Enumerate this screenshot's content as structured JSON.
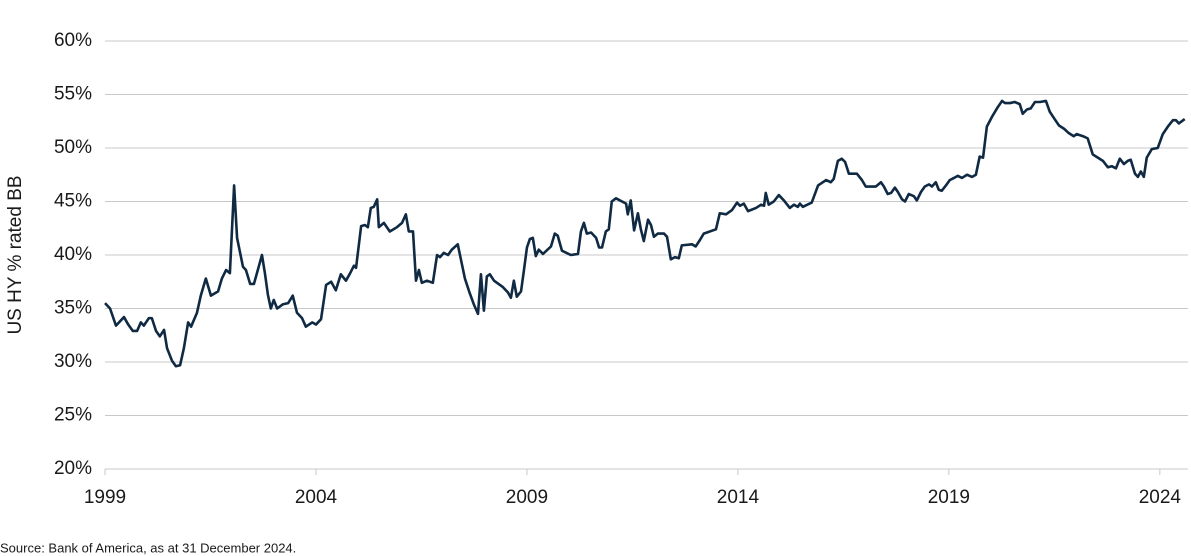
{
  "chart_data": {
    "type": "line",
    "y_axis_label": "US HY % rated BB",
    "source": "Source: Bank of America, as at 31 December 2024.",
    "xlim": [
      1999,
      2024.62
    ],
    "xticks": [
      1999,
      2004,
      2009,
      2014,
      2019,
      2024
    ],
    "ylim": [
      20,
      60
    ],
    "yticks": [
      {
        "value": 20,
        "label": "20%"
      },
      {
        "value": 25,
        "label": "25%"
      },
      {
        "value": 30,
        "label": "30%"
      },
      {
        "value": 35,
        "label": "35%"
      },
      {
        "value": 40,
        "label": "40%"
      },
      {
        "value": 45,
        "label": "45%"
      },
      {
        "value": 50,
        "label": "50%"
      },
      {
        "value": 55,
        "label": "55%"
      },
      {
        "value": 60,
        "label": "60%"
      }
    ],
    "grid": true,
    "x": [
      1999.0,
      1999.12,
      1999.26,
      1999.45,
      1999.55,
      1999.66,
      1999.76,
      1999.85,
      1999.92,
      2000.04,
      2000.11,
      2000.21,
      2000.3,
      2000.4,
      2000.47,
      2000.59,
      2000.68,
      2000.78,
      2000.87,
      2000.97,
      2001.04,
      2001.18,
      2001.27,
      2001.39,
      2001.51,
      2001.68,
      2001.77,
      2001.87,
      2001.96,
      2002.06,
      2002.13,
      2002.27,
      2002.34,
      2002.44,
      2002.53,
      2002.65,
      2002.72,
      2002.79,
      2002.86,
      2002.93,
      2003.0,
      2003.08,
      2003.22,
      2003.34,
      2003.45,
      2003.55,
      2003.67,
      2003.76,
      2003.91,
      2004.0,
      2004.12,
      2004.24,
      2004.36,
      2004.47,
      2004.59,
      2004.71,
      2004.81,
      2004.9,
      2004.95,
      2005.07,
      2005.16,
      2005.23,
      2005.3,
      2005.37,
      2005.45,
      2005.49,
      2005.61,
      2005.75,
      2005.92,
      2006.04,
      2006.13,
      2006.2,
      2006.3,
      2006.37,
      2006.44,
      2006.51,
      2006.63,
      2006.77,
      2006.87,
      2006.94,
      2007.03,
      2007.13,
      2007.22,
      2007.36,
      2007.44,
      2007.53,
      2007.63,
      2007.74,
      2007.84,
      2007.91,
      2007.98,
      2008.05,
      2008.12,
      2008.22,
      2008.43,
      2008.55,
      2008.62,
      2008.69,
      2008.76,
      2008.86,
      2008.93,
      2009.0,
      2009.07,
      2009.14,
      2009.21,
      2009.28,
      2009.38,
      2009.57,
      2009.66,
      2009.73,
      2009.83,
      2010.04,
      2010.21,
      2010.28,
      2010.35,
      2010.42,
      2010.52,
      2010.64,
      2010.71,
      2010.78,
      2010.87,
      2010.94,
      2011.01,
      2011.11,
      2011.35,
      2011.39,
      2011.46,
      2011.54,
      2011.63,
      2011.7,
      2011.77,
      2011.87,
      2011.94,
      2012.01,
      2012.1,
      2012.25,
      2012.32,
      2012.41,
      2012.51,
      2012.6,
      2012.67,
      2012.91,
      2013.0,
      2013.1,
      2013.19,
      2013.48,
      2013.57,
      2013.72,
      2013.86,
      2013.98,
      2014.05,
      2014.14,
      2014.24,
      2014.43,
      2014.55,
      2014.62,
      2014.66,
      2014.73,
      2014.85,
      2014.97,
      2015.09,
      2015.23,
      2015.33,
      2015.42,
      2015.47,
      2015.54,
      2015.75,
      2015.9,
      2016.09,
      2016.2,
      2016.27,
      2016.37,
      2016.46,
      2016.54,
      2016.63,
      2016.82,
      2016.94,
      2017.03,
      2017.27,
      2017.39,
      2017.46,
      2017.55,
      2017.63,
      2017.72,
      2017.79,
      2017.89,
      2017.96,
      2018.05,
      2018.17,
      2018.24,
      2018.34,
      2018.43,
      2018.53,
      2018.6,
      2018.69,
      2018.76,
      2018.83,
      2018.93,
      2019.02,
      2019.12,
      2019.21,
      2019.31,
      2019.43,
      2019.55,
      2019.64,
      2019.73,
      2019.81,
      2019.9,
      2020.02,
      2020.14,
      2020.26,
      2020.33,
      2020.45,
      2020.56,
      2020.68,
      2020.75,
      2020.85,
      2020.94,
      2021.04,
      2021.16,
      2021.3,
      2021.39,
      2021.49,
      2021.61,
      2021.73,
      2021.84,
      2021.96,
      2022.03,
      2022.18,
      2022.29,
      2022.41,
      2022.53,
      2022.65,
      2022.77,
      2022.86,
      2022.96,
      2023.05,
      2023.15,
      2023.24,
      2023.31,
      2023.41,
      2023.48,
      2023.55,
      2023.62,
      2023.69,
      2023.81,
      2023.95,
      2024.07,
      2024.19,
      2024.31,
      2024.38,
      2024.45,
      2024.59
    ],
    "series": [
      {
        "color": "#0f2a42",
        "values": [
          35.5,
          35.0,
          33.4,
          34.2,
          33.5,
          32.9,
          32.9,
          33.7,
          33.4,
          34.1,
          34.1,
          32.9,
          32.4,
          33.0,
          31.3,
          30.1,
          29.6,
          29.7,
          31.3,
          33.7,
          33.3,
          34.6,
          36.2,
          37.8,
          36.2,
          36.6,
          37.8,
          38.6,
          38.3,
          46.5,
          41.6,
          38.9,
          38.6,
          37.3,
          37.3,
          39.0,
          40.0,
          38.3,
          36.3,
          35.0,
          35.8,
          35.0,
          35.4,
          35.5,
          36.2,
          34.6,
          34.1,
          33.3,
          33.7,
          33.5,
          34.0,
          37.2,
          37.5,
          36.7,
          38.2,
          37.6,
          38.3,
          39.0,
          38.8,
          42.7,
          42.8,
          42.6,
          44.4,
          44.5,
          45.2,
          42.6,
          43.0,
          42.2,
          42.6,
          43.0,
          43.8,
          42.2,
          42.2,
          37.6,
          38.6,
          37.4,
          37.6,
          37.4,
          40.0,
          39.8,
          40.2,
          40.0,
          40.5,
          41.0,
          39.5,
          37.8,
          36.6,
          35.4,
          34.5,
          38.2,
          34.8,
          38.0,
          38.2,
          37.6,
          37.0,
          36.5,
          36.0,
          37.6,
          36.1,
          36.6,
          38.6,
          40.7,
          41.5,
          41.6,
          39.9,
          40.5,
          40.1,
          40.8,
          42.0,
          41.8,
          40.4,
          40.0,
          40.1,
          42.2,
          43.0,
          42.0,
          42.1,
          41.6,
          40.7,
          40.7,
          42.2,
          42.4,
          45.0,
          45.3,
          44.8,
          43.8,
          45.1,
          42.3,
          43.9,
          42.4,
          41.3,
          43.3,
          42.8,
          41.7,
          42.0,
          42.0,
          41.7,
          39.6,
          39.8,
          39.7,
          40.9,
          41.0,
          40.8,
          41.4,
          42.0,
          42.4,
          43.9,
          43.8,
          44.2,
          44.9,
          44.6,
          44.8,
          44.1,
          44.4,
          44.7,
          44.6,
          45.8,
          44.7,
          45.0,
          45.6,
          45.1,
          44.4,
          44.7,
          44.5,
          44.8,
          44.5,
          44.9,
          46.5,
          47.0,
          46.8,
          47.1,
          48.8,
          49.0,
          48.7,
          47.6,
          47.6,
          47.0,
          46.4,
          46.4,
          46.8,
          46.4,
          45.7,
          45.8,
          46.3,
          45.9,
          45.2,
          45.0,
          45.7,
          45.5,
          45.1,
          45.9,
          46.4,
          46.6,
          46.4,
          46.8,
          46.1,
          46.0,
          46.5,
          47.0,
          47.2,
          47.4,
          47.2,
          47.5,
          47.3,
          47.5,
          49.2,
          49.1,
          52.0,
          52.9,
          53.7,
          54.4,
          54.2,
          54.2,
          54.3,
          54.1,
          53.2,
          53.6,
          53.7,
          54.3,
          54.3,
          54.4,
          53.4,
          52.8,
          52.1,
          51.8,
          51.4,
          51.1,
          51.3,
          51.1,
          50.9,
          49.4,
          49.1,
          48.8,
          48.2,
          48.3,
          48.1,
          49.0,
          48.5,
          48.8,
          48.9,
          47.6,
          47.3,
          47.8,
          47.3,
          49.1,
          49.9,
          50.0,
          51.3,
          52.0,
          52.6,
          52.6,
          52.3,
          52.7
        ]
      }
    ]
  }
}
